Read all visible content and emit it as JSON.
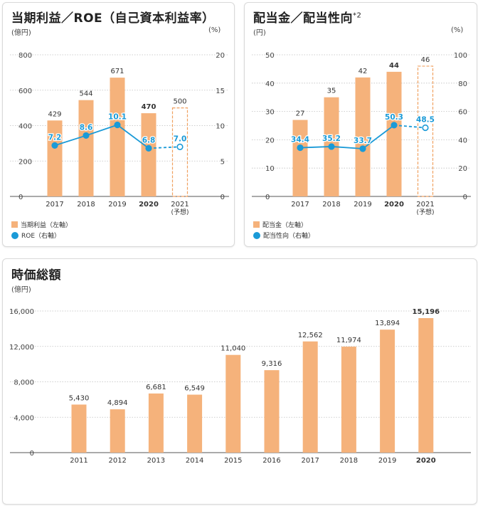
{
  "colors": {
    "bar": "#f5b27b",
    "bar_forecast_border": "#f0a060",
    "line": "#1a9ad7",
    "line_label": "#1a9ad7",
    "grid": "#bfbfbf"
  },
  "chart_data": [
    {
      "id": "net-income-roe",
      "type": "bar",
      "title": "当期利益／ROE（自己資本利益率）",
      "left_unit": "(億円)",
      "right_unit": "(%)",
      "categories": [
        "2017",
        "2018",
        "2019",
        "2020",
        "2021"
      ],
      "category_sublabels": [
        "",
        "",
        "",
        "",
        "(予想)"
      ],
      "bold_category": "2020",
      "forecast_category": "2021",
      "ylim": [
        0,
        800
      ],
      "y_ticks": [
        "0",
        "200",
        "400",
        "600",
        "800"
      ],
      "y2lim": [
        0,
        20
      ],
      "y2_ticks": [
        "0",
        "5",
        "10",
        "15",
        "20"
      ],
      "series": [
        {
          "name": "当期利益（左軸）",
          "type": "bar",
          "values": [
            429,
            544,
            671,
            470,
            500
          ],
          "labels": [
            "429",
            "544",
            "671",
            "470",
            "500"
          ]
        },
        {
          "name": "ROE（右軸）",
          "type": "line",
          "axis": "right",
          "values": [
            7.2,
            8.6,
            10.1,
            6.8,
            7.0
          ],
          "labels": [
            "7.2",
            "8.6",
            "10.1",
            "6.8",
            "7.0"
          ]
        }
      ]
    },
    {
      "id": "dividend-payout",
      "type": "bar",
      "title": "配当金／配当性向",
      "title_sup": "*2",
      "left_unit": "(円)",
      "right_unit": "(%)",
      "categories": [
        "2017",
        "2018",
        "2019",
        "2020",
        "2021"
      ],
      "category_sublabels": [
        "",
        "",
        "",
        "",
        "(予想)"
      ],
      "bold_category": "2020",
      "forecast_category": "2021",
      "ylim": [
        0,
        50
      ],
      "y_ticks": [
        "0",
        "10",
        "20",
        "30",
        "40",
        "50"
      ],
      "y2lim": [
        0,
        100
      ],
      "y2_ticks": [
        "0",
        "20",
        "40",
        "60",
        "80",
        "100"
      ],
      "series": [
        {
          "name": "配当金（左軸）",
          "type": "bar",
          "values": [
            27,
            35,
            42,
            44,
            46
          ],
          "labels": [
            "27",
            "35",
            "42",
            "44",
            "46"
          ]
        },
        {
          "name": "配当性向（右軸）",
          "type": "line",
          "axis": "right",
          "values": [
            34.4,
            35.2,
            33.7,
            50.3,
            48.5
          ],
          "labels": [
            "34.4",
            "35.2",
            "33.7",
            "50.3",
            "48.5"
          ]
        }
      ]
    },
    {
      "id": "market-cap",
      "type": "bar",
      "title": "時価総額",
      "left_unit": "(億円)",
      "categories": [
        "2011",
        "2012",
        "2013",
        "2014",
        "2015",
        "2016",
        "2017",
        "2018",
        "2019",
        "2020"
      ],
      "bold_category": "2020",
      "ylim": [
        0,
        16000
      ],
      "y_ticks": [
        "0",
        "4,000",
        "8,000",
        "12,000",
        "16,000"
      ],
      "series": [
        {
          "name": "",
          "type": "bar",
          "values": [
            5430,
            4894,
            6681,
            6549,
            11040,
            9316,
            12562,
            11974,
            13894,
            15196
          ],
          "labels": [
            "5,430",
            "4,894",
            "6,681",
            "6,549",
            "11,040",
            "9,316",
            "12,562",
            "11,974",
            "13,894",
            "15,196"
          ]
        }
      ]
    }
  ]
}
